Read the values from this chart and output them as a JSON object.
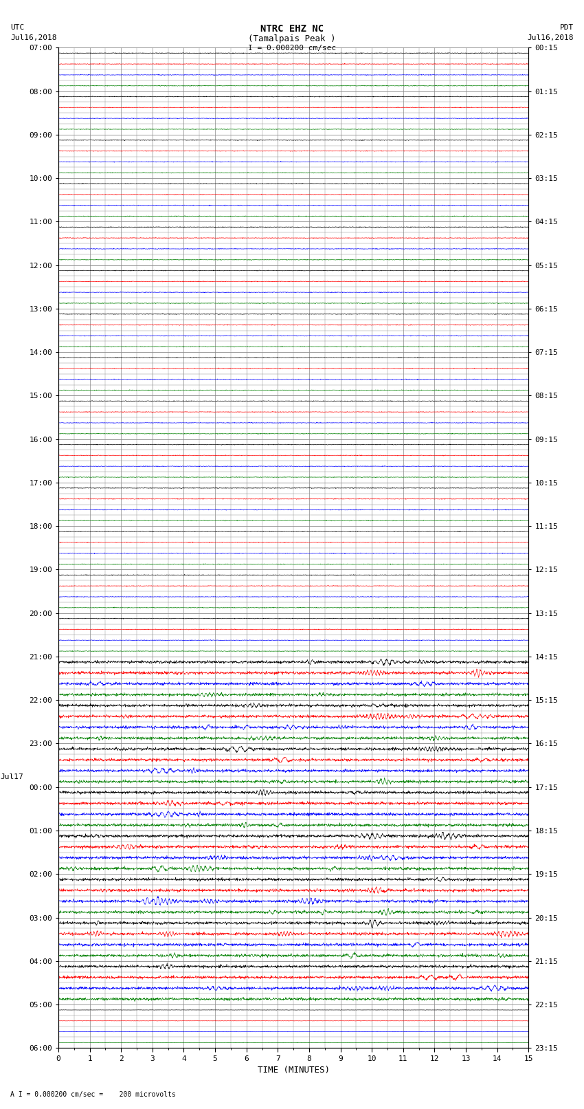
{
  "title_line1": "NTRC EHZ NC",
  "title_line2": "(Tamalpais Peak )",
  "title_scale": "I = 0.000200 cm/sec",
  "left_label_top": "UTC",
  "left_label_date": "Jul16,2018",
  "right_label_top": "PDT",
  "right_label_date": "Jul16,2018",
  "xlabel": "TIME (MINUTES)",
  "bottom_note": "A I = 0.000200 cm/sec =    200 microvolts",
  "xmin": 0,
  "xmax": 15,
  "background_color": "#ffffff",
  "grid_color": "#888888",
  "trace_color_cycle": [
    "#000000",
    "#ff0000",
    "#0000ff",
    "#008000"
  ],
  "num_traces": 92,
  "quiet_until_trace": 56,
  "left_tick_info": [
    {
      "idx": 0,
      "label": "07:00"
    },
    {
      "idx": 4,
      "label": "08:00"
    },
    {
      "idx": 8,
      "label": "09:00"
    },
    {
      "idx": 12,
      "label": "10:00"
    },
    {
      "idx": 16,
      "label": "11:00"
    },
    {
      "idx": 20,
      "label": "12:00"
    },
    {
      "idx": 24,
      "label": "13:00"
    },
    {
      "idx": 28,
      "label": "14:00"
    },
    {
      "idx": 32,
      "label": "15:00"
    },
    {
      "idx": 36,
      "label": "16:00"
    },
    {
      "idx": 40,
      "label": "17:00"
    },
    {
      "idx": 44,
      "label": "18:00"
    },
    {
      "idx": 48,
      "label": "19:00"
    },
    {
      "idx": 52,
      "label": "20:00"
    },
    {
      "idx": 56,
      "label": "21:00"
    },
    {
      "idx": 60,
      "label": "22:00"
    },
    {
      "idx": 64,
      "label": "23:00"
    },
    {
      "idx": 68,
      "label": "00:00"
    },
    {
      "idx": 72,
      "label": "01:00"
    },
    {
      "idx": 76,
      "label": "02:00"
    },
    {
      "idx": 80,
      "label": "03:00"
    },
    {
      "idx": 84,
      "label": "04:00"
    },
    {
      "idx": 88,
      "label": "05:00"
    },
    {
      "idx": 92,
      "label": "06:00"
    }
  ],
  "jul17_idx": 68,
  "right_tick_info": [
    {
      "idx": 0,
      "label": "00:15"
    },
    {
      "idx": 4,
      "label": "01:15"
    },
    {
      "idx": 8,
      "label": "02:15"
    },
    {
      "idx": 12,
      "label": "03:15"
    },
    {
      "idx": 16,
      "label": "04:15"
    },
    {
      "idx": 20,
      "label": "05:15"
    },
    {
      "idx": 24,
      "label": "06:15"
    },
    {
      "idx": 28,
      "label": "07:15"
    },
    {
      "idx": 32,
      "label": "08:15"
    },
    {
      "idx": 36,
      "label": "09:15"
    },
    {
      "idx": 40,
      "label": "10:15"
    },
    {
      "idx": 44,
      "label": "11:15"
    },
    {
      "idx": 48,
      "label": "12:15"
    },
    {
      "idx": 52,
      "label": "13:15"
    },
    {
      "idx": 56,
      "label": "14:15"
    },
    {
      "idx": 60,
      "label": "15:15"
    },
    {
      "idx": 64,
      "label": "16:15"
    },
    {
      "idx": 68,
      "label": "17:15"
    },
    {
      "idx": 72,
      "label": "18:15"
    },
    {
      "idx": 76,
      "label": "19:15"
    },
    {
      "idx": 80,
      "label": "20:15"
    },
    {
      "idx": 84,
      "label": "21:15"
    },
    {
      "idx": 88,
      "label": "22:15"
    },
    {
      "idx": 92,
      "label": "23:15"
    }
  ]
}
